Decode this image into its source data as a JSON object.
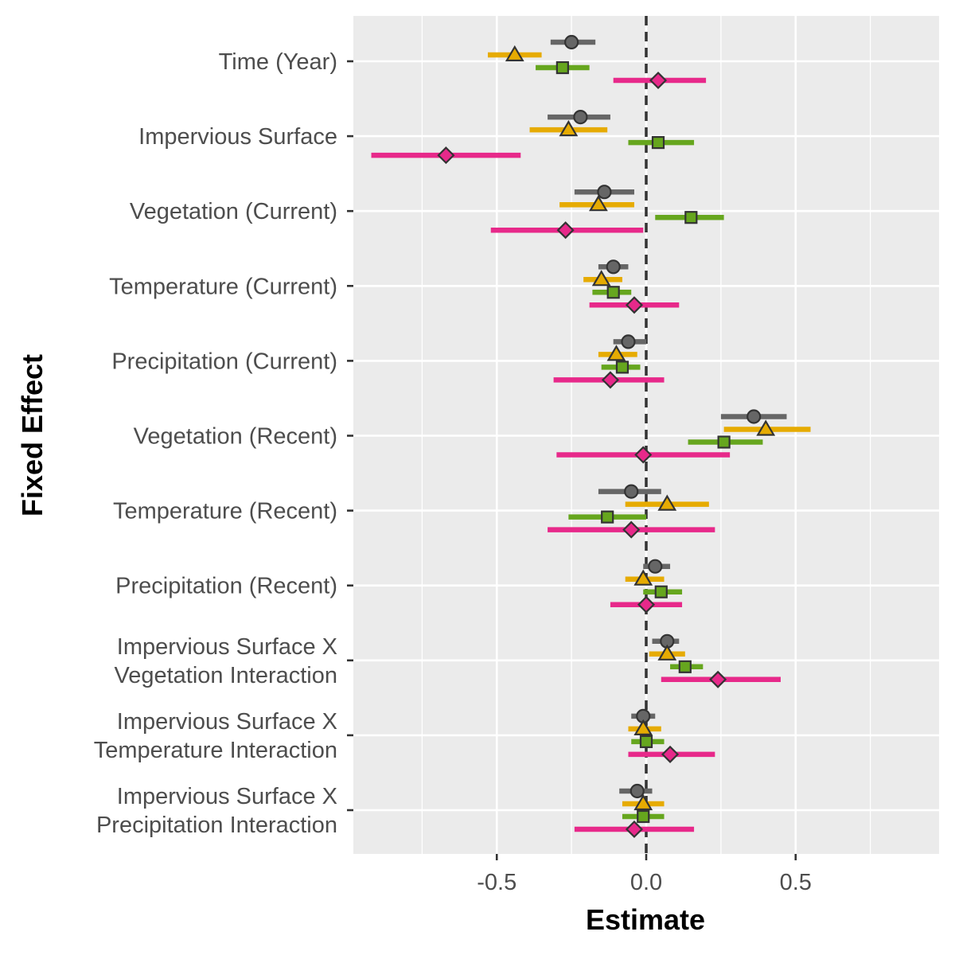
{
  "chart_data": {
    "type": "scatter",
    "subtype": "coefficient-plot-with-error-bars",
    "orientation": "horizontal",
    "xlabel": "Estimate",
    "ylabel": "Fixed Effect",
    "xlim": [
      -0.98,
      0.98
    ],
    "x_ticks": [
      -0.5,
      0.0,
      0.5
    ],
    "x_tick_labels": [
      "-0.5",
      "0.0",
      "0.5"
    ],
    "reference_line": 0.0,
    "grid": true,
    "legend": "none",
    "categories": [
      "Time (Year)",
      "Impervious Surface",
      "Vegetation (Current)",
      "Temperature (Current)",
      "Precipitation (Current)",
      "Vegetation (Recent)",
      "Temperature (Recent)",
      "Precipitation (Recent)",
      "Impervious Surface X\nVegetation Interaction",
      "Impervious Surface X\nTemperature Interaction",
      "Impervious Surface X\nPrecipitation Interaction"
    ],
    "series": [
      {
        "marker": "circle",
        "color": "#666666",
        "estimates": [
          -0.25,
          -0.22,
          -0.14,
          -0.11,
          -0.06,
          0.36,
          -0.05,
          0.03,
          0.07,
          -0.01,
          -0.03
        ],
        "lower": [
          -0.32,
          -0.33,
          -0.24,
          -0.16,
          -0.11,
          0.25,
          -0.16,
          -0.01,
          0.02,
          -0.05,
          -0.09
        ],
        "upper": [
          -0.17,
          -0.12,
          -0.04,
          -0.06,
          0.0,
          0.47,
          0.05,
          0.08,
          0.11,
          0.03,
          0.02
        ]
      },
      {
        "marker": "triangle",
        "color": "#E6AB02",
        "estimates": [
          -0.44,
          -0.26,
          -0.16,
          -0.15,
          -0.1,
          0.4,
          0.07,
          -0.01,
          0.07,
          -0.01,
          -0.01
        ],
        "lower": [
          -0.53,
          -0.39,
          -0.29,
          -0.21,
          -0.16,
          0.26,
          -0.07,
          -0.07,
          0.01,
          -0.06,
          -0.08
        ],
        "upper": [
          -0.35,
          -0.13,
          -0.04,
          -0.08,
          -0.03,
          0.55,
          0.21,
          0.06,
          0.13,
          0.05,
          0.06
        ]
      },
      {
        "marker": "square",
        "color": "#66A61E",
        "estimates": [
          -0.28,
          0.04,
          0.15,
          -0.11,
          -0.08,
          0.26,
          -0.13,
          0.05,
          0.13,
          0.0,
          -0.01
        ],
        "lower": [
          -0.37,
          -0.06,
          0.03,
          -0.18,
          -0.15,
          0.14,
          -0.26,
          -0.01,
          0.08,
          -0.05,
          -0.08
        ],
        "upper": [
          -0.19,
          0.16,
          0.26,
          -0.05,
          -0.02,
          0.39,
          0.0,
          0.12,
          0.19,
          0.06,
          0.06
        ]
      },
      {
        "marker": "diamond",
        "color": "#E7298A",
        "estimates": [
          0.04,
          -0.67,
          -0.27,
          -0.04,
          -0.12,
          -0.01,
          -0.05,
          0.0,
          0.24,
          0.08,
          -0.04
        ],
        "lower": [
          -0.11,
          -0.92,
          -0.52,
          -0.19,
          -0.31,
          -0.3,
          -0.33,
          -0.12,
          0.05,
          -0.06,
          -0.24
        ],
        "upper": [
          0.2,
          -0.42,
          -0.01,
          0.11,
          0.06,
          0.28,
          0.23,
          0.12,
          0.45,
          0.23,
          0.16
        ]
      }
    ]
  }
}
